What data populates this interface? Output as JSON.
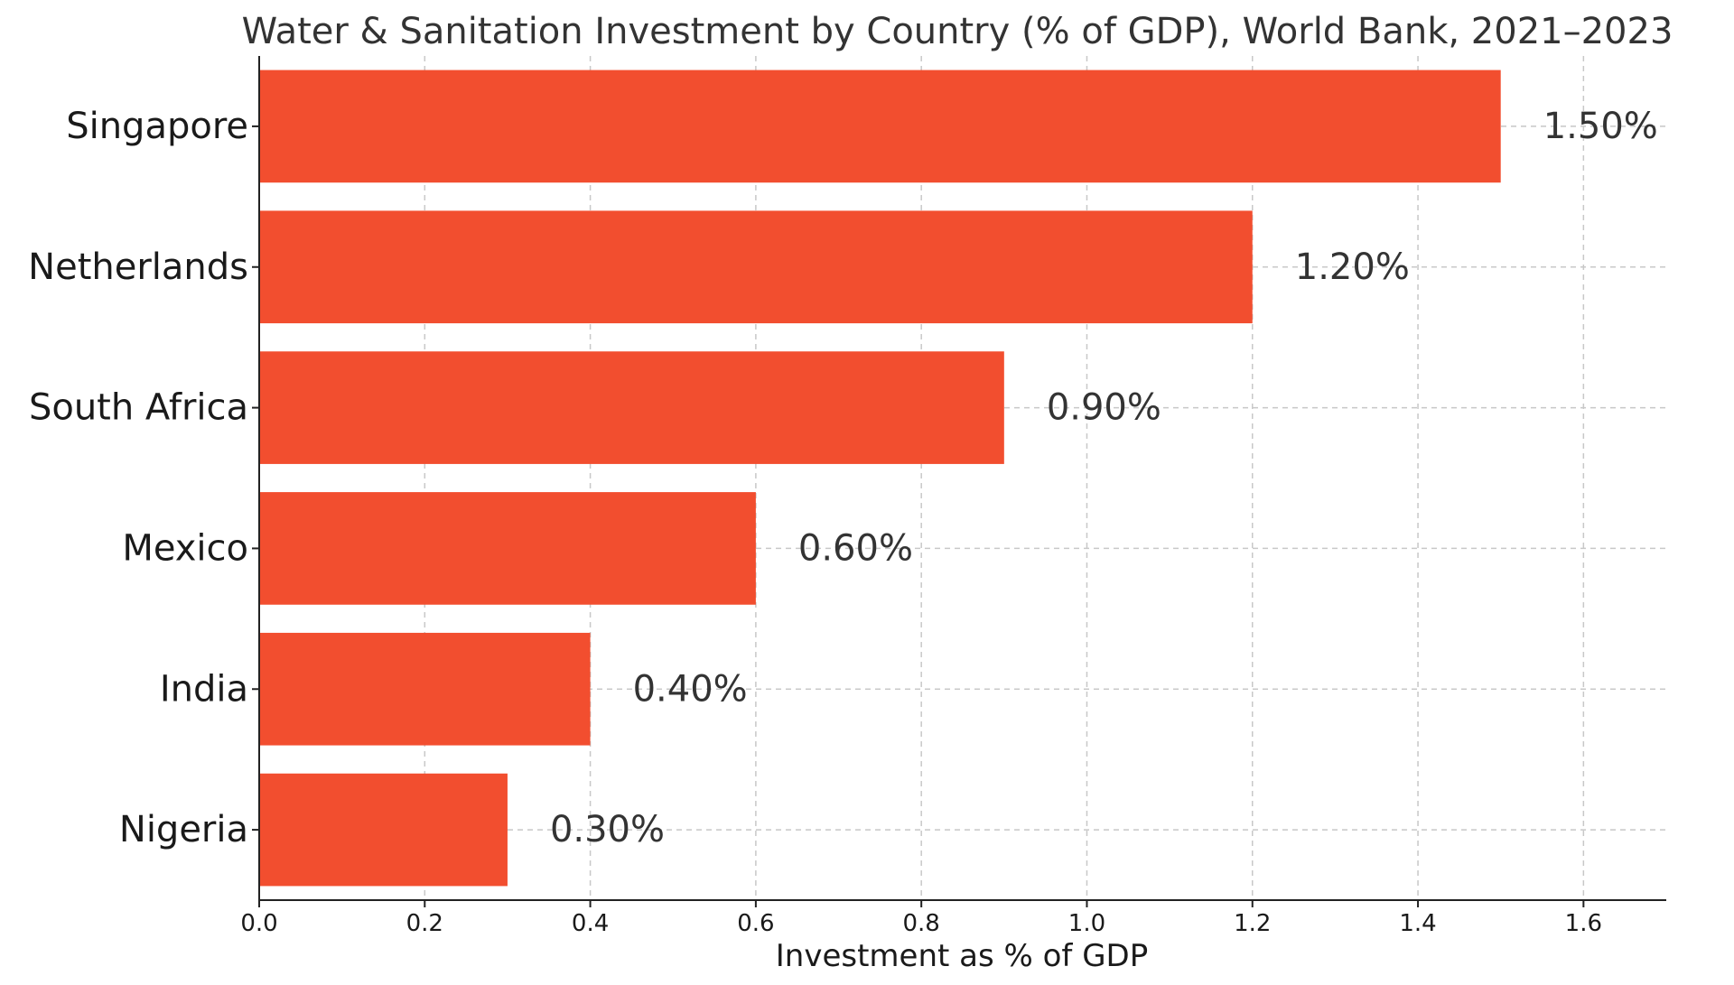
{
  "chart_data": {
    "type": "bar",
    "orientation": "horizontal",
    "title": "Water & Sanitation Investment by Country (% of GDP), World Bank, 2021–2023",
    "xlabel": "Investment as % of GDP",
    "ylabel": "",
    "categories": [
      "Singapore",
      "Netherlands",
      "South Africa",
      "Mexico",
      "India",
      "Nigeria"
    ],
    "values": [
      1.5,
      1.2,
      0.9,
      0.6,
      0.4,
      0.3
    ],
    "data_labels": [
      "1.50%",
      "1.20%",
      "0.90%",
      "0.60%",
      "0.40%",
      "0.30%"
    ],
    "xlim": [
      0,
      1.7
    ],
    "xticks": [
      0.0,
      0.2,
      0.4,
      0.6,
      0.8,
      1.0,
      1.2,
      1.4,
      1.6
    ],
    "xtick_labels": [
      "0.0",
      "0.2",
      "0.4",
      "0.6",
      "0.8",
      "1.0",
      "1.2",
      "1.4",
      "1.6"
    ],
    "grid": true,
    "bar_color": "#f24e2f"
  }
}
